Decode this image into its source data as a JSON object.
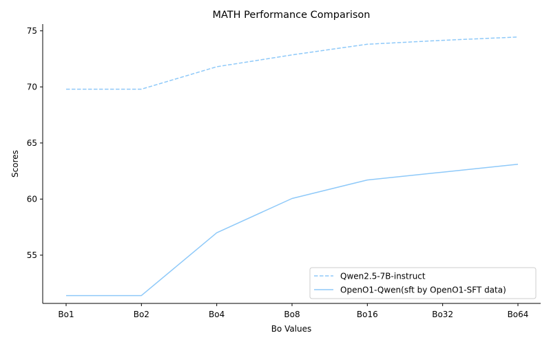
{
  "chart_data": {
    "type": "line",
    "title": "MATH Performance Comparison",
    "xlabel": "Bo Values",
    "ylabel": "Scores",
    "categories": [
      "Bo1",
      "Bo2",
      "Bo4",
      "Bo8",
      "Bo16",
      "Bo32",
      "Bo64"
    ],
    "ylim": [
      50.7,
      75.6
    ],
    "yticks": [
      55,
      60,
      65,
      70,
      75
    ],
    "grid": false,
    "legend_position": "lower-right",
    "series": [
      {
        "name": "Qwen2.5-7B-instruct",
        "style": "dashed",
        "color": "#8ec9f9",
        "values": [
          69.8,
          69.8,
          71.8,
          72.85,
          73.8,
          74.15,
          74.45
        ]
      },
      {
        "name": "OpenO1-Qwen(sft by OpenO1-SFT data)",
        "style": "solid",
        "color": "#8ec9f9",
        "values": [
          51.4,
          51.4,
          57.0,
          60.05,
          61.7,
          62.4,
          63.1
        ]
      }
    ]
  }
}
